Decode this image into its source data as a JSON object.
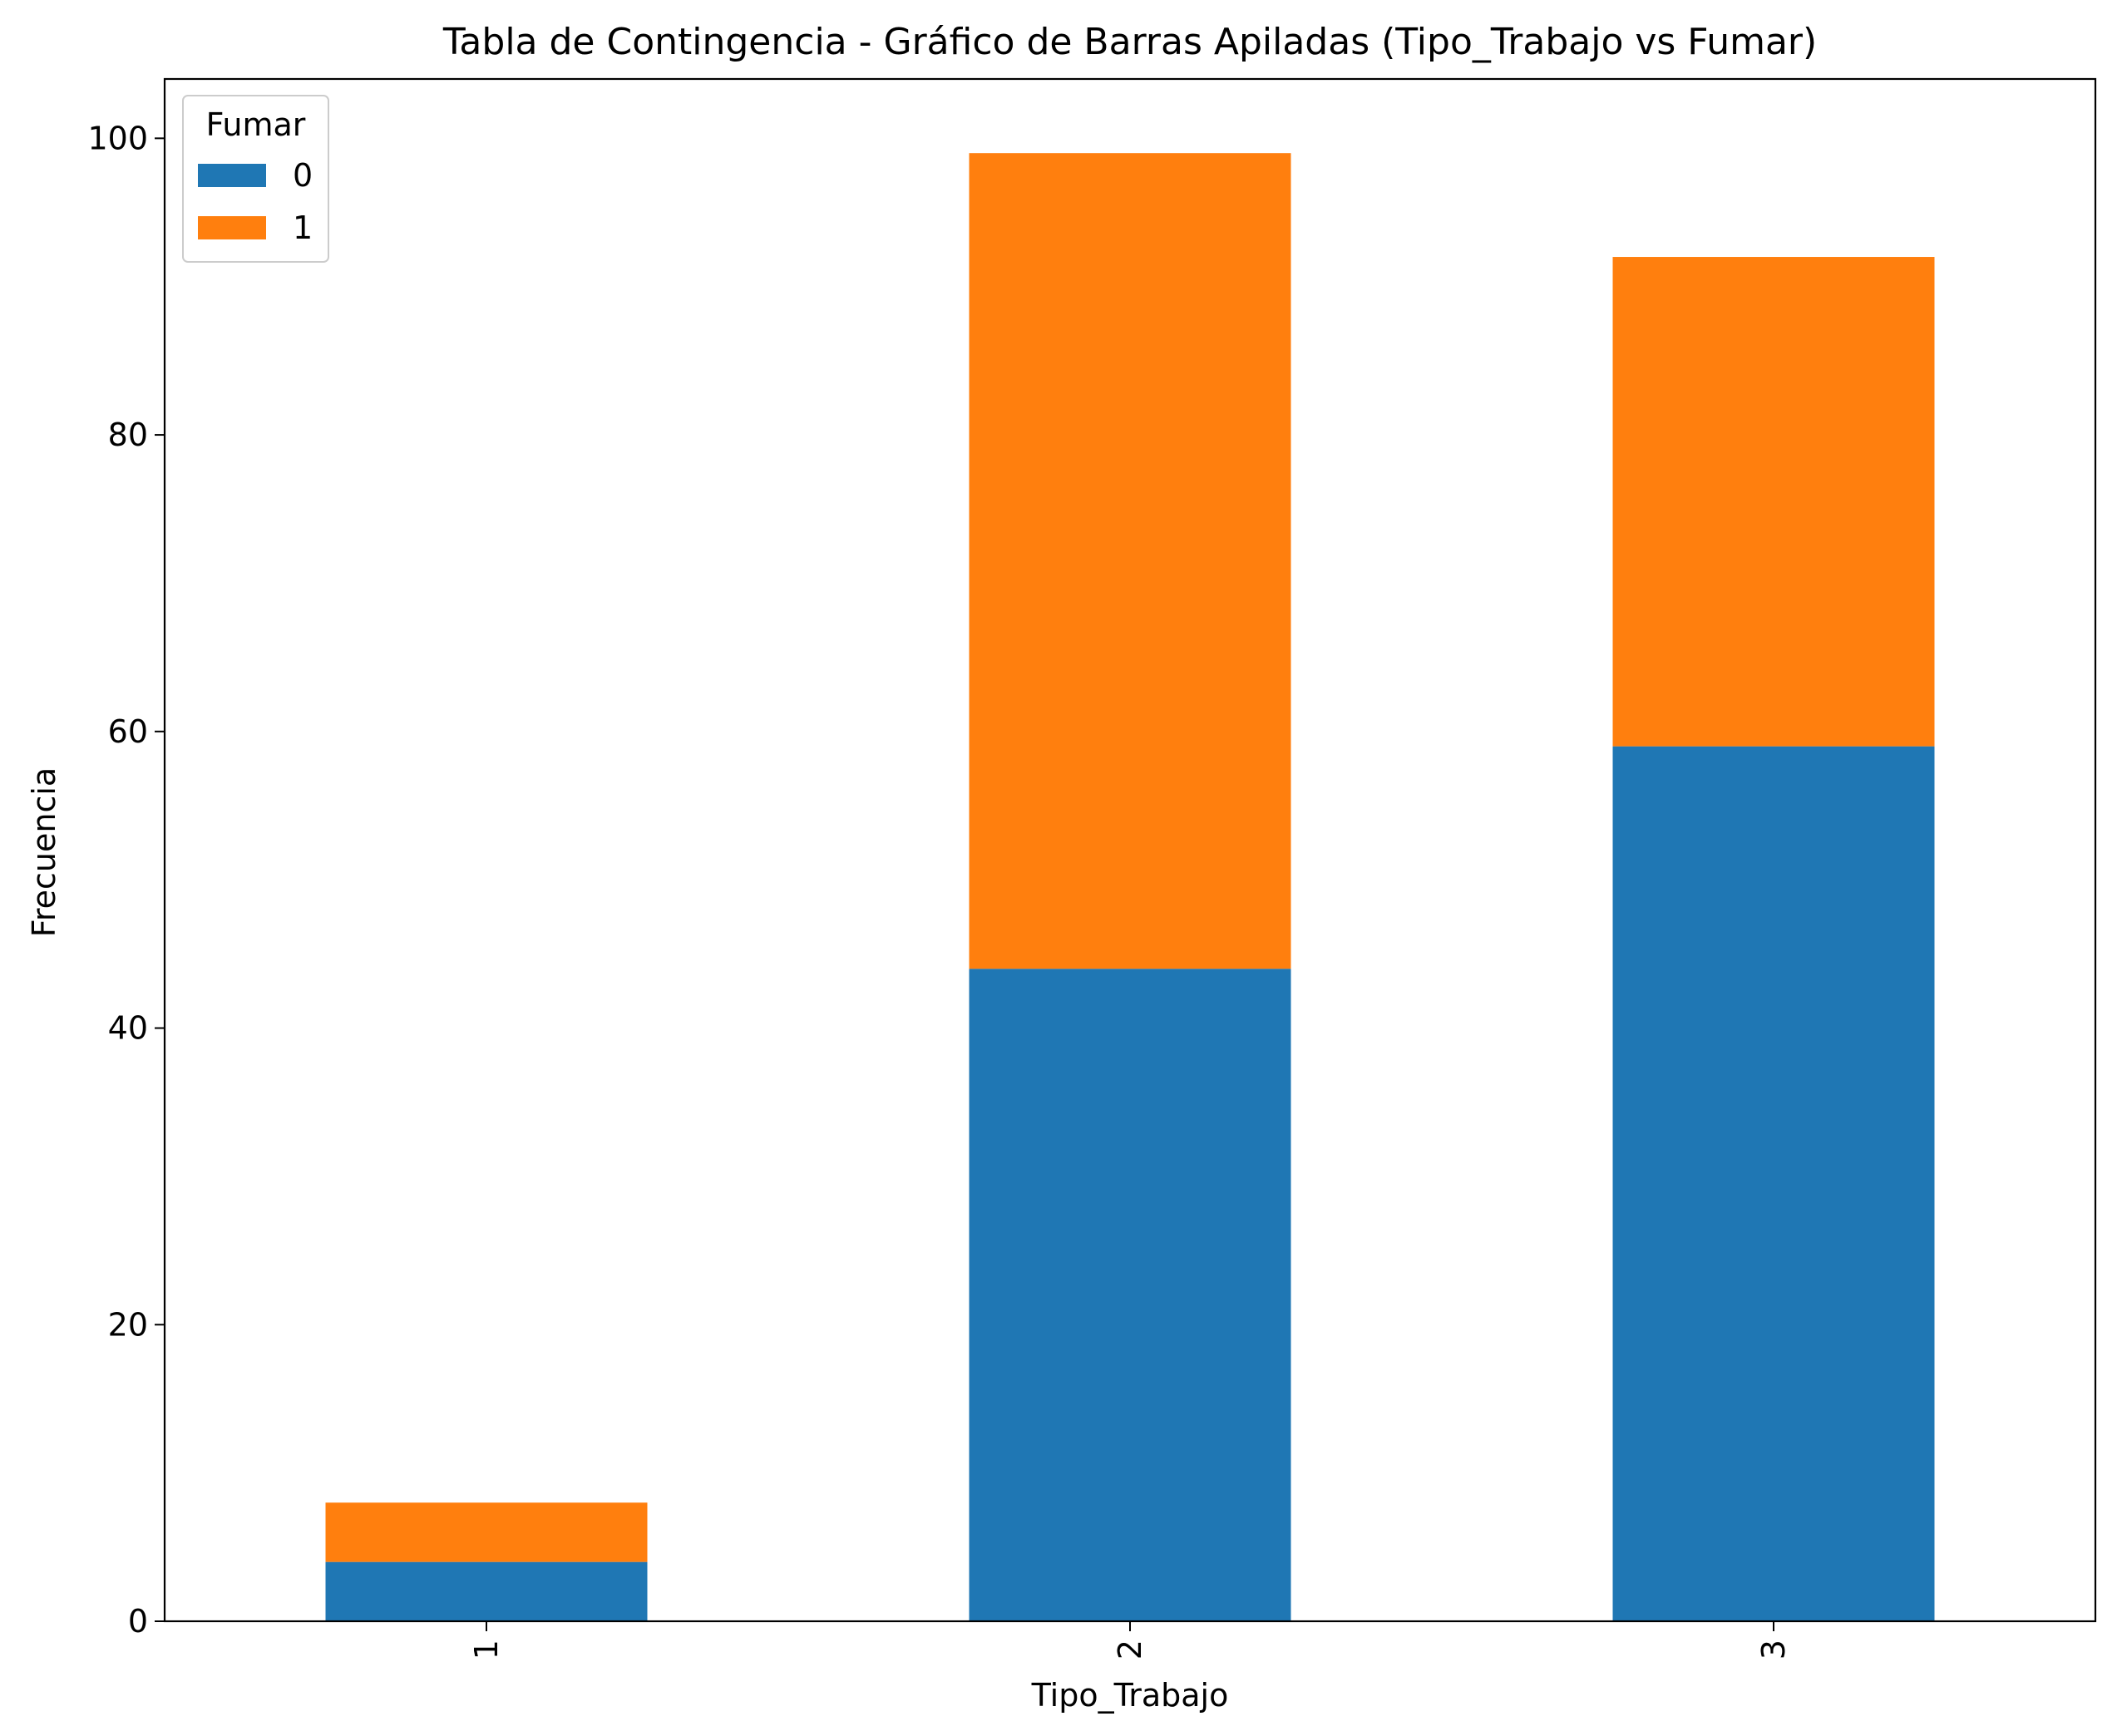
{
  "chart_data": {
    "type": "bar",
    "stacked": true,
    "title": "Tabla de Contingencia - Gráfico de Barras Apiladas (Tipo_Trabajo vs Fumar)",
    "xlabel": "Tipo_Trabajo",
    "ylabel": "Frecuencia",
    "categories": [
      "1",
      "2",
      "3"
    ],
    "series": [
      {
        "name": "0",
        "values": [
          4,
          44,
          59
        ],
        "color": "#1f77b4"
      },
      {
        "name": "1",
        "values": [
          4,
          55,
          33
        ],
        "color": "#ff7f0e"
      }
    ],
    "ylim": [
      0,
      104
    ],
    "yticks": [
      0,
      20,
      40,
      60,
      80,
      100
    ],
    "x_tick_rotation": 90,
    "legend": {
      "title": "Fumar",
      "placement": "top-left"
    },
    "grid": false
  }
}
